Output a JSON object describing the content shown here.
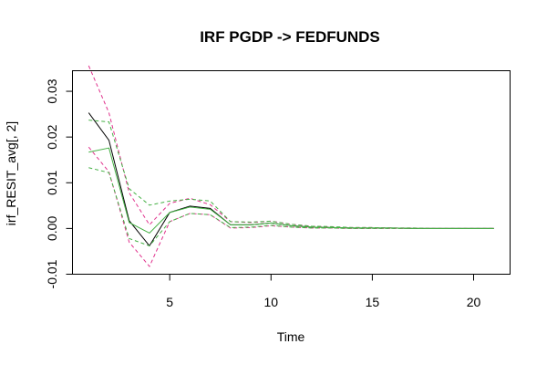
{
  "chart_data": {
    "type": "line",
    "title": "IRF PGDP -> FEDFUNDS",
    "xlabel": "Time",
    "ylabel": "irf_RESIT_avg[, 2]",
    "xlim": [
      0.2,
      21.8
    ],
    "ylim": [
      -0.01,
      0.0345
    ],
    "xticks": [
      5,
      10,
      15,
      20
    ],
    "xtick_labels": [
      "5",
      "10",
      "15",
      "20"
    ],
    "yticks": [
      -0.01,
      0.0,
      0.01,
      0.02,
      0.03
    ],
    "ytick_labels": [
      "-0.01",
      "0.00",
      "0.01",
      "0.02",
      "0.03"
    ],
    "grid": false,
    "legend": "none",
    "x": [
      1,
      2,
      3,
      4,
      5,
      6,
      7,
      8,
      9,
      10,
      11,
      12,
      13,
      14,
      15,
      16,
      17,
      18,
      19,
      20,
      21
    ],
    "series": [
      {
        "color": "#000000",
        "dash": "solid",
        "values": [
          0.0253,
          0.0193,
          0.0017,
          -0.0038,
          0.0035,
          0.0049,
          0.0044,
          0.0008,
          0.0008,
          0.0012,
          0.0006,
          0.0003,
          0.0002,
          0.0001,
          0.0001,
          0.0001,
          0.0,
          0.0,
          0.0,
          0.0,
          0.0
        ]
      },
      {
        "color": "#e0308c",
        "dash": "dashed",
        "values": [
          0.0356,
          0.0253,
          0.0078,
          0.0008,
          0.0055,
          0.0066,
          0.0052,
          0.0015,
          0.0013,
          0.0016,
          0.0009,
          0.0005,
          0.0003,
          0.0002,
          0.0002,
          0.0001,
          0.0001,
          0.0,
          0.0,
          0.0,
          0.0
        ]
      },
      {
        "color": "#e0308c",
        "dash": "dashed",
        "values": [
          0.0178,
          0.0124,
          -0.003,
          -0.0083,
          0.0015,
          0.0033,
          0.003,
          0.0001,
          0.0002,
          0.0006,
          0.0003,
          0.0001,
          0.0001,
          0.0,
          0.0,
          0.0,
          0.0,
          0.0,
          0.0,
          0.0,
          0.0
        ]
      },
      {
        "color": "#44b044",
        "dash": "solid",
        "values": [
          0.0167,
          0.0176,
          0.0013,
          -0.001,
          0.0035,
          0.0047,
          0.0042,
          0.0008,
          0.0008,
          0.0012,
          0.0006,
          0.0003,
          0.0002,
          0.0001,
          0.0001,
          0.0001,
          0.0,
          0.0,
          0.0,
          0.0,
          0.0
        ]
      },
      {
        "color": "#44b044",
        "dash": "dashed",
        "values": [
          0.0237,
          0.0233,
          0.0087,
          0.0051,
          0.006,
          0.0064,
          0.006,
          0.0015,
          0.0014,
          0.0016,
          0.0009,
          0.0005,
          0.0004,
          0.0002,
          0.0002,
          0.0001,
          0.0001,
          0.0,
          0.0,
          0.0,
          0.0
        ]
      },
      {
        "color": "#44b044",
        "dash": "dashed",
        "values": [
          0.0133,
          0.0122,
          -0.0022,
          -0.0038,
          0.0015,
          0.0033,
          0.003,
          0.0002,
          0.0003,
          0.0007,
          0.0003,
          0.0001,
          0.0001,
          0.0,
          0.0,
          0.0,
          0.0,
          0.0,
          0.0,
          0.0,
          0.0
        ]
      }
    ]
  }
}
